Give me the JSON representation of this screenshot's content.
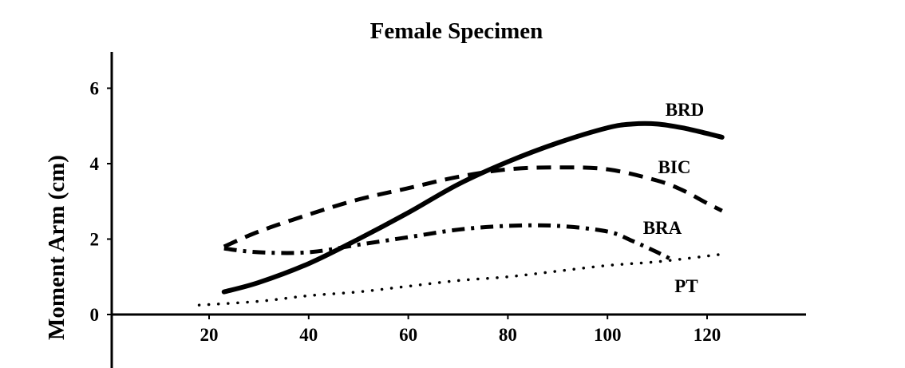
{
  "chart_data": {
    "type": "line",
    "title": "Female Specimen",
    "xlabel": "",
    "ylabel": "Moment Arm (cm)",
    "xlim": [
      0,
      140
    ],
    "ylim": [
      -1.2,
      7
    ],
    "x_ticks": [
      20,
      40,
      60,
      80,
      100,
      120
    ],
    "y_ticks": [
      0,
      2,
      4,
      6
    ],
    "grid": false,
    "legend": "none",
    "series": [
      {
        "name": "BRD",
        "style": "solid",
        "x": [
          23,
          30,
          40,
          50,
          60,
          70,
          80,
          90,
          100,
          105,
          110,
          115,
          120,
          123
        ],
        "y": [
          0.6,
          0.85,
          1.35,
          2.0,
          2.7,
          3.45,
          4.05,
          4.55,
          4.95,
          5.05,
          5.05,
          4.95,
          4.8,
          4.7
        ]
      },
      {
        "name": "BIC",
        "style": "dashed",
        "x": [
          23,
          30,
          40,
          50,
          60,
          70,
          80,
          90,
          100,
          110,
          115,
          120,
          123
        ],
        "y": [
          1.8,
          2.2,
          2.65,
          3.05,
          3.35,
          3.65,
          3.85,
          3.9,
          3.85,
          3.55,
          3.3,
          2.95,
          2.75
        ]
      },
      {
        "name": "BRA",
        "style": "dashdot",
        "x": [
          23,
          30,
          40,
          50,
          60,
          70,
          80,
          90,
          100,
          105,
          110,
          113
        ],
        "y": [
          1.75,
          1.65,
          1.65,
          1.85,
          2.05,
          2.25,
          2.35,
          2.35,
          2.2,
          1.95,
          1.65,
          1.45
        ]
      },
      {
        "name": "PT",
        "style": "dotted",
        "x": [
          18,
          30,
          40,
          50,
          60,
          70,
          80,
          90,
          100,
          110,
          120,
          123
        ],
        "y": [
          0.25,
          0.35,
          0.5,
          0.6,
          0.75,
          0.9,
          1.0,
          1.15,
          1.3,
          1.4,
          1.55,
          1.6
        ]
      }
    ]
  }
}
